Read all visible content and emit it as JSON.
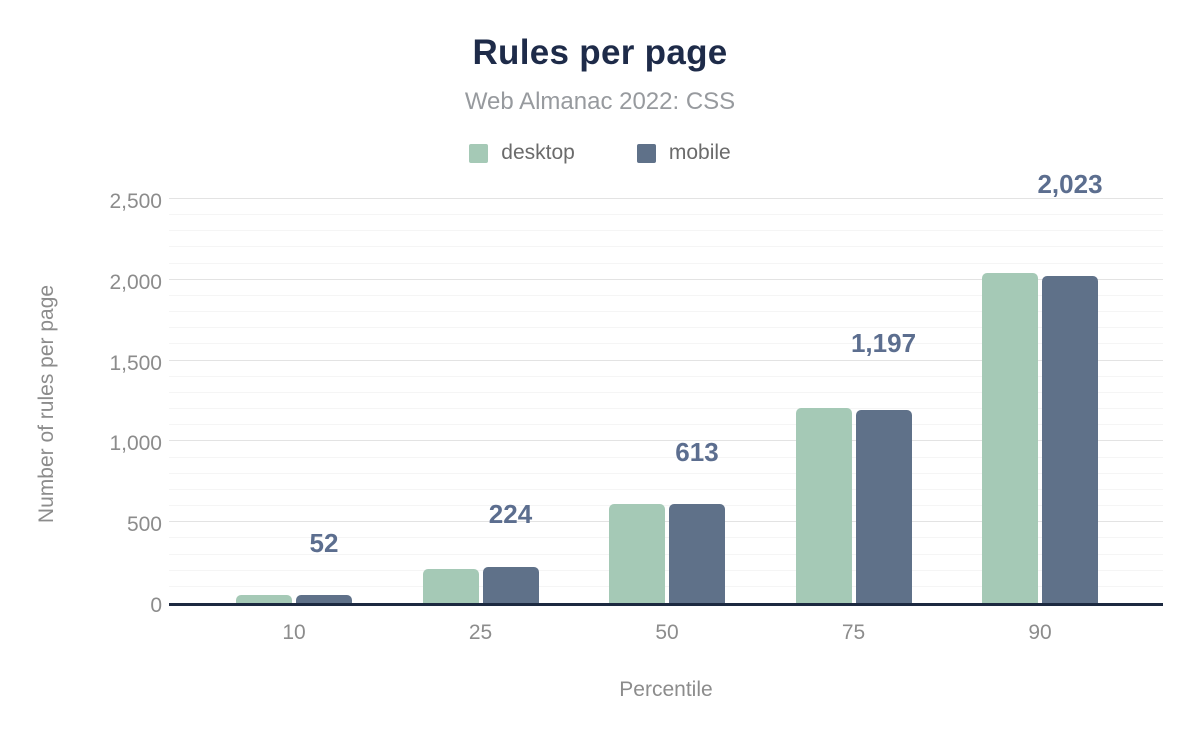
{
  "chart_data": {
    "type": "bar",
    "title": "Rules per page",
    "subtitle": "Web Almanac 2022: CSS",
    "xlabel": "Percentile",
    "ylabel": "Number of rules per page",
    "categories": [
      "10",
      "25",
      "50",
      "75",
      "90"
    ],
    "series": [
      {
        "name": "desktop",
        "color": "#a5c9b6",
        "values": [
          48,
          208,
          615,
          1210,
          2040
        ]
      },
      {
        "name": "mobile",
        "color": "#5f7189",
        "values": [
          52,
          224,
          613,
          1197,
          2023
        ]
      }
    ],
    "data_labels": {
      "series": "mobile",
      "text": [
        "52",
        "224",
        "613",
        "1,197",
        "2,023"
      ],
      "color": "#5c6e8f"
    },
    "ylim": [
      0,
      2500
    ],
    "ytick_values": [
      0,
      500,
      1000,
      1500,
      2000,
      2500
    ],
    "yticks": [
      "0",
      "500",
      "1,000",
      "1,500",
      "2,000",
      "2,500"
    ],
    "ytick_step": 500,
    "minor_grid_step": 100,
    "grid": "horizontal-major-and-minor",
    "legend_position": "top",
    "axis_line_color": "#1c2940",
    "title_color": "#1e2b49"
  }
}
